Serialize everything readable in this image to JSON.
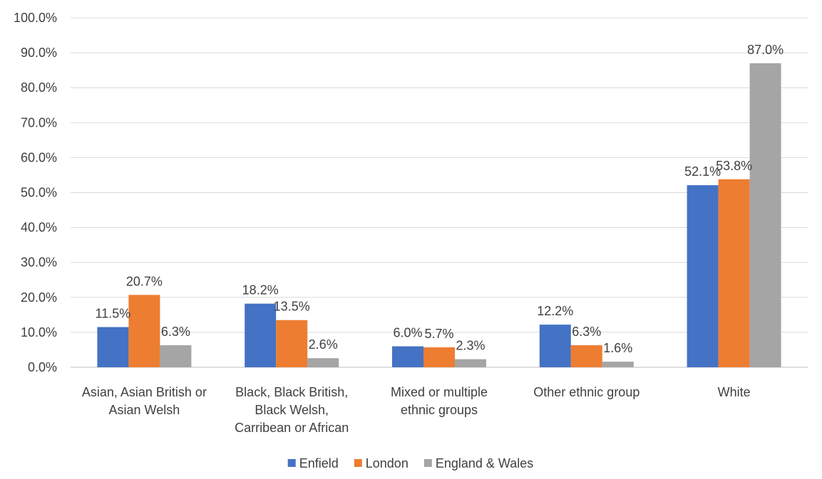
{
  "chart_data": {
    "type": "bar",
    "title": "",
    "xlabel": "",
    "ylabel": "",
    "ylim": [
      0,
      100
    ],
    "y_ticks": [
      "0.0%",
      "10.0%",
      "20.0%",
      "30.0%",
      "40.0%",
      "50.0%",
      "60.0%",
      "70.0%",
      "80.0%",
      "90.0%",
      "100.0%"
    ],
    "grid": true,
    "legend_position": "bottom",
    "categories": [
      [
        "Asian, Asian British or",
        "Asian Welsh"
      ],
      [
        "Black, Black British,",
        "Black Welsh,",
        "Carribean or African"
      ],
      [
        "Mixed or multiple",
        "ethnic groups"
      ],
      [
        "Other ethnic group"
      ],
      [
        "White"
      ]
    ],
    "series": [
      {
        "name": "Enfield",
        "color": "#4472c4",
        "values": [
          11.5,
          18.2,
          6.0,
          12.2,
          52.1
        ],
        "labels": [
          "11.5%",
          "18.2%",
          "6.0%",
          "12.2%",
          "52.1%"
        ]
      },
      {
        "name": "London",
        "color": "#ed7d31",
        "values": [
          20.7,
          13.5,
          5.7,
          6.3,
          53.8
        ],
        "labels": [
          "20.7%",
          "13.5%",
          "5.7%",
          "6.3%",
          "53.8%"
        ]
      },
      {
        "name": "England & Wales",
        "color": "#a5a5a5",
        "values": [
          6.3,
          2.6,
          2.3,
          1.6,
          87.0
        ],
        "labels": [
          "6.3%",
          "2.6%",
          "2.3%",
          "1.6%",
          "87.0%"
        ]
      }
    ]
  }
}
